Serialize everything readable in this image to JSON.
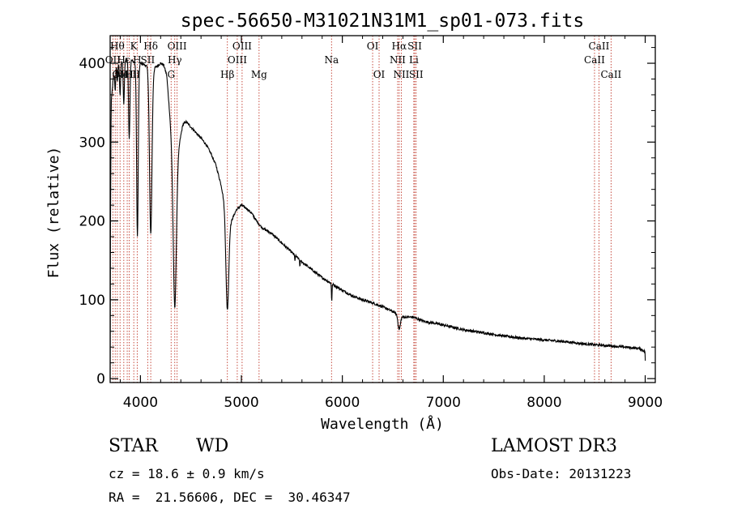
{
  "chart_data": {
    "type": "line",
    "title": "spec-56650-M31021N31M1_sp01-073.fits",
    "xlabel": "Wavelength (Å)",
    "ylabel": "Flux (relative)",
    "xlim": [
      3700,
      9100
    ],
    "ylim": [
      -5,
      435
    ],
    "xticks": [
      4000,
      5000,
      6000,
      7000,
      8000,
      9000
    ],
    "yticks": [
      0,
      100,
      200,
      300,
      400
    ],
    "series": [
      {
        "name": "spectrum",
        "continuum": [
          [
            3700,
            0
          ],
          [
            3702,
            160
          ],
          [
            3710,
            350
          ],
          [
            3730,
            380
          ],
          [
            3760,
            395
          ],
          [
            3800,
            400
          ],
          [
            3850,
            405
          ],
          [
            3900,
            405
          ],
          [
            3950,
            400
          ],
          [
            4000,
            400
          ],
          [
            4040,
            398
          ],
          [
            4080,
            395
          ],
          [
            4120,
            392
          ],
          [
            4160,
            396
          ],
          [
            4200,
            400
          ],
          [
            4230,
            398
          ],
          [
            4260,
            385
          ],
          [
            4300,
            320
          ],
          [
            4340,
            280
          ],
          [
            4380,
            295
          ],
          [
            4420,
            322
          ],
          [
            4450,
            326
          ],
          [
            4480,
            322
          ],
          [
            4550,
            312
          ],
          [
            4600,
            305
          ],
          [
            4650,
            297
          ],
          [
            4700,
            285
          ],
          [
            4750,
            270
          ],
          [
            4800,
            245
          ],
          [
            4850,
            210
          ],
          [
            4900,
            200
          ],
          [
            4950,
            214
          ],
          [
            5000,
            220
          ],
          [
            5050,
            216
          ],
          [
            5100,
            210
          ],
          [
            5150,
            200
          ],
          [
            5200,
            192
          ],
          [
            5300,
            184
          ],
          [
            5400,
            172
          ],
          [
            5500,
            160
          ],
          [
            5600,
            148
          ],
          [
            5700,
            138
          ],
          [
            5800,
            128
          ],
          [
            5900,
            120
          ],
          [
            6000,
            112
          ],
          [
            6100,
            105
          ],
          [
            6200,
            100
          ],
          [
            6300,
            96
          ],
          [
            6400,
            91
          ],
          [
            6500,
            85
          ],
          [
            6600,
            78
          ],
          [
            6700,
            78
          ],
          [
            6800,
            73
          ],
          [
            7000,
            68
          ],
          [
            7200,
            62
          ],
          [
            7400,
            58
          ],
          [
            7600,
            54
          ],
          [
            7800,
            51
          ],
          [
            8000,
            49
          ],
          [
            8200,
            47
          ],
          [
            8400,
            44
          ],
          [
            8600,
            42
          ],
          [
            8800,
            40
          ],
          [
            8950,
            38
          ],
          [
            9000,
            34
          ],
          [
            9003,
            0
          ]
        ],
        "absorption": [
          {
            "center": 3750,
            "depth": 25,
            "width": 4
          },
          {
            "center": 3771,
            "depth": 20,
            "width": 4
          },
          {
            "center": 3798,
            "depth": 40,
            "width": 5
          },
          {
            "center": 3835,
            "depth": 55,
            "width": 6
          },
          {
            "center": 3889,
            "depth": 100,
            "width": 7
          },
          {
            "center": 3970,
            "depth": 220,
            "width": 8
          },
          {
            "center": 4102,
            "depth": 210,
            "width": 12
          },
          {
            "center": 4340,
            "depth": 190,
            "width": 16
          },
          {
            "center": 4861,
            "depth": 120,
            "width": 14
          },
          {
            "center": 5895,
            "depth": 22,
            "width": 3
          },
          {
            "center": 6563,
            "depth": 18,
            "width": 12
          },
          {
            "center": 5530,
            "depth": 6,
            "width": 3
          },
          {
            "center": 5580,
            "depth": 8,
            "width": 3
          }
        ],
        "noise_amplitude": 1.6
      }
    ],
    "line_markers": [
      {
        "wavelength": 3727,
        "label": "OII",
        "row": 2
      },
      {
        "wavelength": 3750,
        "label": "",
        "row": 3
      },
      {
        "wavelength": 3771,
        "label": "Hθ",
        "row": 1
      },
      {
        "wavelength": 3798,
        "label": "OII",
        "row": 3
      },
      {
        "wavelength": 3835,
        "label": "Hε",
        "row": 2
      },
      {
        "wavelength": 3869,
        "label": "NeIII",
        "row": 3
      },
      {
        "wavelength": 3889,
        "label": "H",
        "row": 3
      },
      {
        "wavelength": 3934,
        "label": "K",
        "row": 1
      },
      {
        "wavelength": 3968,
        "label": "H",
        "row": 2
      },
      {
        "wavelength": 4072,
        "label": "SII",
        "row": 2
      },
      {
        "wavelength": 4102,
        "label": "Hδ",
        "row": 1
      },
      {
        "wavelength": 4304,
        "label": "G",
        "row": 3
      },
      {
        "wavelength": 4340,
        "label": "Hγ",
        "row": 2
      },
      {
        "wavelength": 4363,
        "label": "OIII",
        "row": 1
      },
      {
        "wavelength": 4861,
        "label": "Hβ",
        "row": 3
      },
      {
        "wavelength": 4959,
        "label": "OIII",
        "row": 2
      },
      {
        "wavelength": 5007,
        "label": "OIII",
        "row": 1
      },
      {
        "wavelength": 5175,
        "label": "Mg",
        "row": 3
      },
      {
        "wavelength": 5893,
        "label": "Na",
        "row": 2
      },
      {
        "wavelength": 6300,
        "label": "OI",
        "row": 1
      },
      {
        "wavelength": 6364,
        "label": "OI",
        "row": 3
      },
      {
        "wavelength": 6548,
        "label": "NII",
        "row": 2
      },
      {
        "wavelength": 6563,
        "label": "Hα",
        "row": 1
      },
      {
        "wavelength": 6584,
        "label": "NII",
        "row": 3
      },
      {
        "wavelength": 6708,
        "label": "Li",
        "row": 2
      },
      {
        "wavelength": 6717,
        "label": "SII",
        "row": 1
      },
      {
        "wavelength": 6731,
        "label": "SII",
        "row": 3
      },
      {
        "wavelength": 8498,
        "label": "CaII",
        "row": 2
      },
      {
        "wavelength": 8542,
        "label": "CaII",
        "row": 1
      },
      {
        "wavelength": 8662,
        "label": "CaII",
        "row": 3
      }
    ]
  },
  "info": {
    "class": "STAR",
    "subclass": "WD",
    "survey": "LAMOST DR3",
    "redshift": "cz = 18.6 ± 0.9 km/s",
    "obs_date": "Obs-Date: 20131223",
    "coords": "RA =  21.56606, DEC =  30.46347"
  },
  "colors": {
    "spectrum": "#000000",
    "marker": "#c0392b",
    "axis": "#000000",
    "background": "#ffffff"
  }
}
